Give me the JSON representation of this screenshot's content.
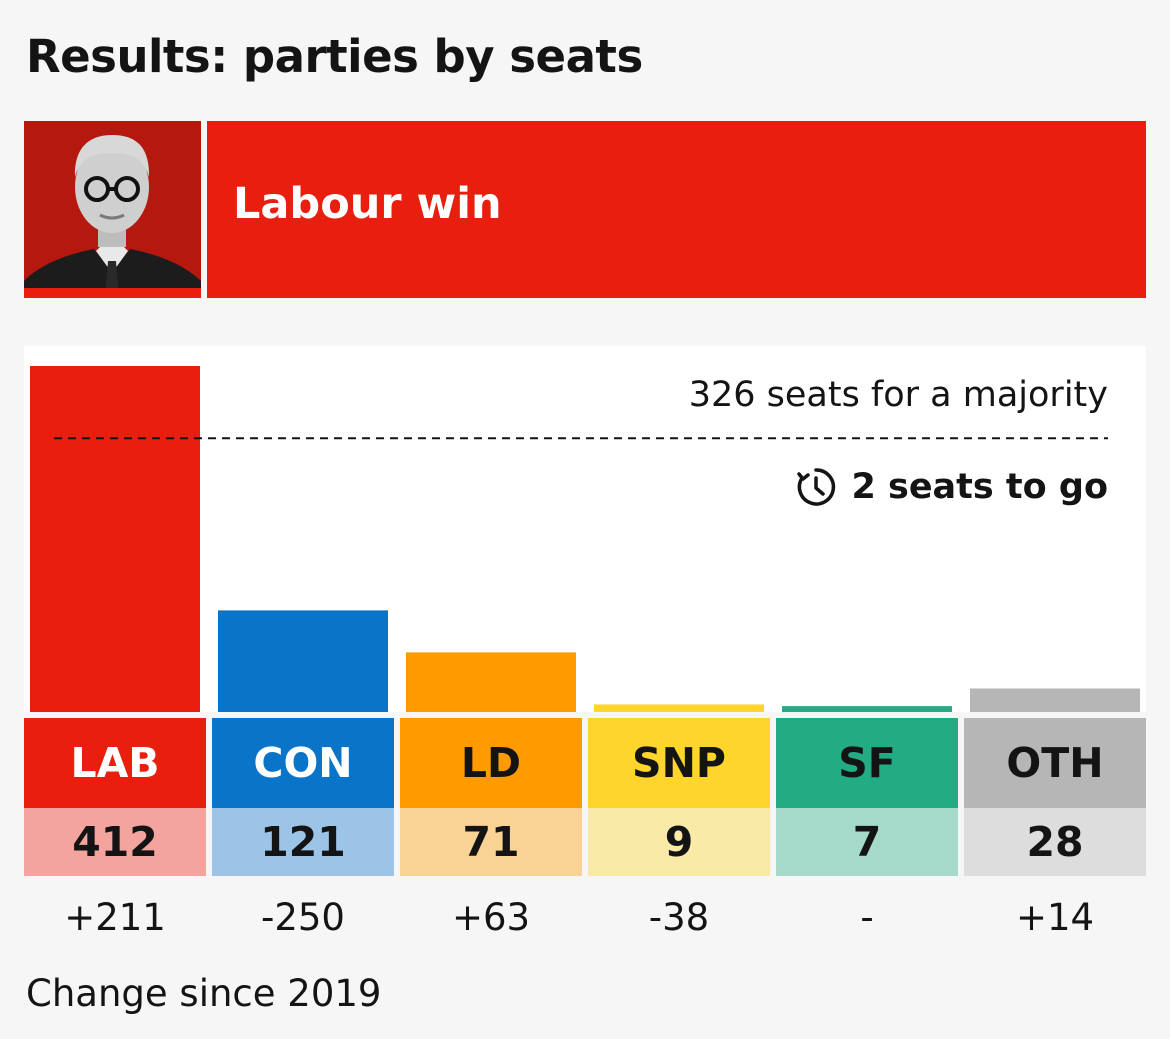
{
  "title": "Results: parties by seats",
  "banner": {
    "text": "Labour win",
    "color": "#e81e0e",
    "photo_alt": "portrait of the Labour leader"
  },
  "chart_data": {
    "type": "bar",
    "categories": [
      "LAB",
      "CON",
      "LD",
      "SNP",
      "SF",
      "OTH"
    ],
    "values": [
      412,
      121,
      71,
      9,
      7,
      28
    ],
    "changes": [
      "+211",
      "-250",
      "+63",
      "-38",
      "-",
      "+14"
    ],
    "change_caption": "Change since 2019",
    "majority": {
      "value": 326,
      "label": "326 seats for a majority"
    },
    "to_go_label": "2 seats to go",
    "bar_colors": [
      "#e81e0e",
      "#0a74c9",
      "#ff9b00",
      "#fdd52c",
      "#23ab84",
      "#b6b6b6"
    ],
    "label_text_colors": [
      "#ffffff",
      "#ffffff",
      "#141414",
      "#141414",
      "#141414",
      "#141414"
    ],
    "value_bg_colors": [
      "#f3a49e",
      "#9cc4e7",
      "#f9d295",
      "#faeaa7",
      "#a5d9c9",
      "#dddddd"
    ],
    "ylim": [
      0,
      412
    ],
    "grid": false,
    "legend": "none"
  },
  "icons": {
    "clock": "clock-timer-icon"
  }
}
